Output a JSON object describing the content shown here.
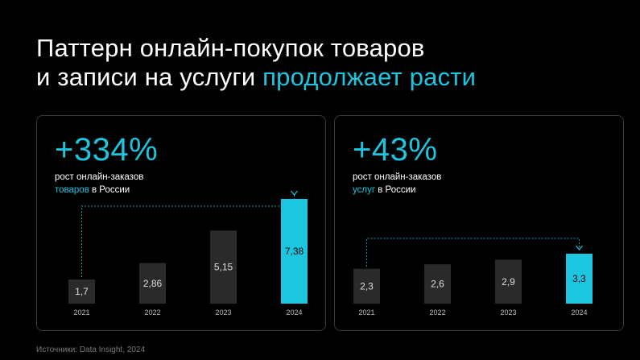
{
  "title": {
    "line1": "Паттерн онлайн-покупок товаров",
    "line2_start": "и записи на услуги ",
    "line2_accent": "продолжает расти"
  },
  "colors": {
    "accent": "#1cc5e0",
    "bar": "#2a2a2a",
    "background": "#000000"
  },
  "panels": [
    {
      "headline": "+334%",
      "caption_line1": "рост онлайн-заказов",
      "caption_hl": "товаров",
      "caption_rest": " в России"
    },
    {
      "headline": "+43%",
      "caption_line1": "рост онлайн-заказов",
      "caption_hl": "услуг",
      "caption_rest": " в России"
    }
  ],
  "chart_data": [
    {
      "type": "bar",
      "categories": [
        "2021",
        "2022",
        "2023",
        "2024"
      ],
      "values": [
        1.7,
        2.86,
        5.15,
        7.38
      ],
      "labels": [
        "1,7",
        "2,86",
        "5,15",
        "7,38"
      ],
      "highlight_index": 3,
      "ylim": [
        0,
        7.38
      ],
      "annotation": "dotted arrow from 2021 to 2024"
    },
    {
      "type": "bar",
      "categories": [
        "2021",
        "2022",
        "2023",
        "2024"
      ],
      "values": [
        2.3,
        2.6,
        2.9,
        3.3
      ],
      "labels": [
        "2,3",
        "2,6",
        "2,9",
        "3,3"
      ],
      "highlight_index": 3,
      "ylim": [
        0,
        3.3
      ],
      "annotation": "dotted arrow from 2021 to 2024"
    }
  ],
  "source": "Источники: Data Insight, 2024"
}
